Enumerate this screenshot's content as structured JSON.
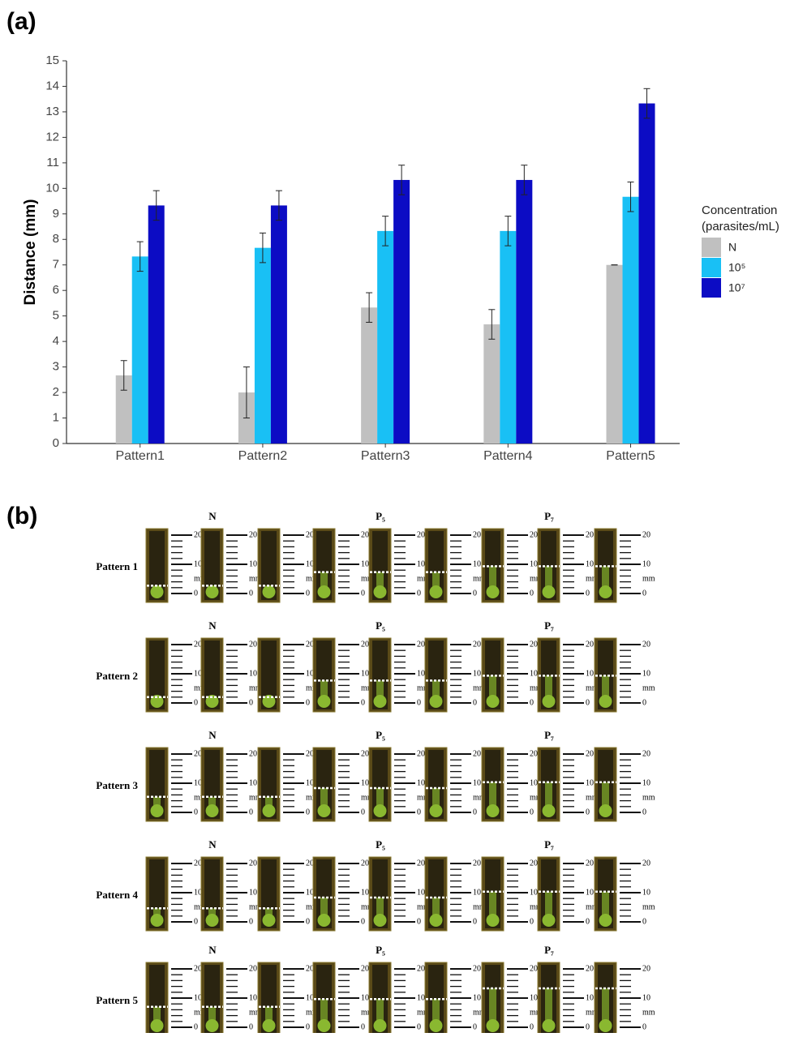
{
  "panel_a_label": "(a)",
  "chart_data": {
    "type": "bar",
    "ylabel": "Distance (mm)",
    "legend_title": [
      "Concentration",
      "(parasites/mL)"
    ],
    "legend_position": "right",
    "categories": [
      "Pattern1",
      "Pattern2",
      "Pattern3",
      "Pattern4",
      "Pattern5"
    ],
    "series": [
      {
        "name": "N",
        "color": "#c0c0c0",
        "values": [
          2.67,
          2.0,
          5.33,
          4.67,
          7.0
        ],
        "errors": [
          0.58,
          1.0,
          0.58,
          0.58,
          0.0
        ]
      },
      {
        "name": "10⁵",
        "color": "#19c0f5",
        "values": [
          7.33,
          7.67,
          8.33,
          8.33,
          9.67
        ],
        "errors": [
          0.58,
          0.58,
          0.58,
          0.58,
          0.58
        ]
      },
      {
        "name": "10⁷",
        "color": "#0c0cc4",
        "values": [
          9.33,
          9.33,
          10.33,
          10.33,
          13.33
        ],
        "errors": [
          0.58,
          0.58,
          0.58,
          0.58,
          0.58
        ]
      }
    ],
    "ylim": [
      0,
      15
    ],
    "yticks": [
      0,
      1,
      2,
      3,
      4,
      5,
      6,
      7,
      8,
      9,
      10,
      11,
      12,
      13,
      14,
      15
    ],
    "grid": false
  },
  "panel_b": {
    "label": "(b)",
    "rows": [
      "Pattern 1",
      "Pattern 2",
      "Pattern 3",
      "Pattern 4",
      "Pattern 5"
    ],
    "groups": [
      "N",
      "P₅",
      "P₇"
    ],
    "ruler_labels": [
      "20",
      "10",
      "mm",
      "0"
    ]
  }
}
